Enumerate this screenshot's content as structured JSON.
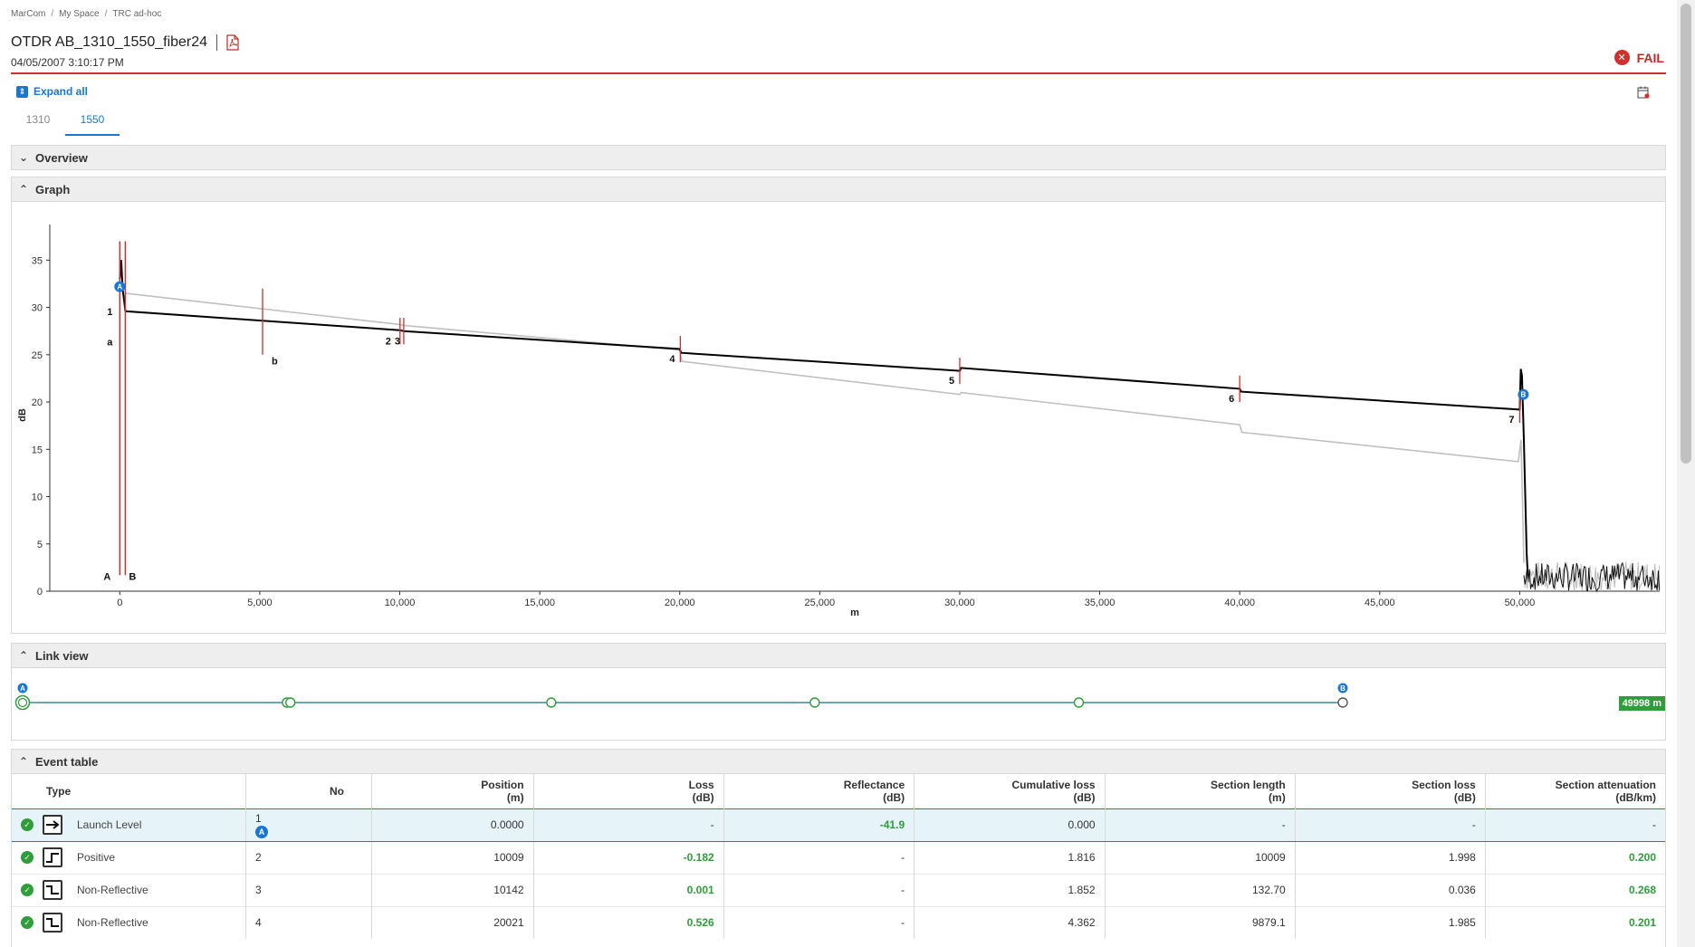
{
  "breadcrumb": [
    "MarCom",
    "My Space",
    "TRC ad-hoc"
  ],
  "header": {
    "title": "OTDR AB_1310_1550_fiber24",
    "datetime": "04/05/2007 3:10:17 PM",
    "status": "FAIL",
    "status_color": "#d32f2f",
    "pdf_icon": "pdf-icon",
    "status_icon": "close-circle-icon"
  },
  "toolbar": {
    "expand_all": "Expand all",
    "calendar_icon": "calendar-icon"
  },
  "tabs": [
    {
      "label": "1310",
      "active": false
    },
    {
      "label": "1550",
      "active": true
    }
  ],
  "sections": {
    "overview": "Overview",
    "graph": "Graph",
    "link_view": "Link view",
    "event_table": "Event table"
  },
  "chart_data": {
    "type": "line",
    "xlabel": "m",
    "ylabel": "dB",
    "xlim": [
      -2500,
      55000
    ],
    "ylim": [
      0,
      38
    ],
    "x_ticks": [
      0,
      5000,
      10000,
      15000,
      20000,
      25000,
      30000,
      35000,
      40000,
      45000,
      50000
    ],
    "x_tick_labels": [
      "0",
      "5,000",
      "10,000",
      "15,000",
      "20,000",
      "25,000",
      "30,000",
      "35,000",
      "40,000",
      "45,000",
      "50,000"
    ],
    "y_ticks": [
      0,
      5,
      10,
      15,
      20,
      25,
      30,
      35
    ],
    "y_tick_labels": [
      "0",
      "5",
      "10",
      "15",
      "20",
      "25",
      "30",
      "35"
    ],
    "series": [
      {
        "color": "#000000",
        "x": [
          0,
          50,
          100,
          200,
          10000,
          10142,
          20000,
          20050,
          30000,
          30050,
          40000,
          40050,
          50000,
          50040,
          50080,
          50150,
          50250,
          50300
        ],
        "y": [
          33,
          35,
          32,
          29.6,
          27.6,
          27.5,
          25.6,
          25.2,
          23.3,
          23.6,
          21.4,
          21.1,
          19.2,
          23.5,
          22.8,
          16,
          4,
          1
        ]
      },
      {
        "color": "#c0c0c0",
        "x": [
          200,
          10000,
          10142,
          20000,
          20080,
          30000,
          30050,
          40000,
          40080,
          49950,
          50050,
          50150
        ],
        "y": [
          31.5,
          28.2,
          28.1,
          25.5,
          24.3,
          20.8,
          21.0,
          17.6,
          16.8,
          13.7,
          16,
          3
        ]
      }
    ],
    "event_markers": [
      {
        "label": "1",
        "x": 0,
        "y": 29.5
      },
      {
        "label": "2",
        "x": 10009,
        "y": 27.5
      },
      {
        "label": "3",
        "x": 10142,
        "y": 27.5
      },
      {
        "label": "4",
        "x": 20021,
        "y": 25.6
      },
      {
        "label": "5",
        "x": 30000,
        "y": 23.3
      },
      {
        "label": "6",
        "x": 40000,
        "y": 21.4
      },
      {
        "label": "7",
        "x": 50000,
        "y": 19.2
      }
    ],
    "cursors": [
      {
        "label": "A",
        "x": 0
      },
      {
        "label": "B",
        "x": 100
      }
    ],
    "cursor_a_marker": "A",
    "cursor_b_marker": "B",
    "section_markers": [
      {
        "label": "a",
        "x": 0
      },
      {
        "label": "b",
        "x": 5100
      }
    ]
  },
  "link_view": {
    "start_label": "A",
    "end_label": "B",
    "distance": "49998 m",
    "node_positions_m": [
      0,
      10009,
      10142,
      20021,
      30000,
      40000,
      49998
    ]
  },
  "event_table": {
    "columns": [
      {
        "label": "Type",
        "unit": ""
      },
      {
        "label": "No",
        "unit": ""
      },
      {
        "label": "Position",
        "unit": "(m)"
      },
      {
        "label": "Loss",
        "unit": "(dB)"
      },
      {
        "label": "Reflectance",
        "unit": "(dB)"
      },
      {
        "label": "Cumulative loss",
        "unit": "(dB)"
      },
      {
        "label": "Section length",
        "unit": "(m)"
      },
      {
        "label": "Section loss",
        "unit": "(dB)"
      },
      {
        "label": "Section attenuation",
        "unit": "(dB/km)"
      }
    ],
    "rows": [
      {
        "status": "pass",
        "icon": "launch-level-icon",
        "type": "Launch Level",
        "no": "1",
        "marker": "A",
        "position": "0.0000",
        "loss": "-",
        "reflectance": "-41.9",
        "cum_loss": "0.000",
        "section_length": "-",
        "section_loss": "-",
        "section_att": "-",
        "selected": true
      },
      {
        "status": "pass",
        "icon": "positive-event-icon",
        "type": "Positive",
        "no": "2",
        "marker": "",
        "position": "10009",
        "loss": "-0.182",
        "reflectance": "-",
        "cum_loss": "1.816",
        "section_length": "10009",
        "section_loss": "1.998",
        "section_att": "0.200",
        "selected": false
      },
      {
        "status": "pass",
        "icon": "non-reflective-event-icon",
        "type": "Non-Reflective",
        "no": "3",
        "marker": "",
        "position": "10142",
        "loss": "0.001",
        "reflectance": "-",
        "cum_loss": "1.852",
        "section_length": "132.70",
        "section_loss": "0.036",
        "section_att": "0.268",
        "selected": false
      },
      {
        "status": "pass",
        "icon": "non-reflective-event-icon",
        "type": "Non-Reflective",
        "no": "4",
        "marker": "",
        "position": "20021",
        "loss": "0.526",
        "reflectance": "-",
        "cum_loss": "4.362",
        "section_length": "9879.1",
        "section_loss": "1.985",
        "section_att": "0.201",
        "selected": false
      }
    ]
  }
}
